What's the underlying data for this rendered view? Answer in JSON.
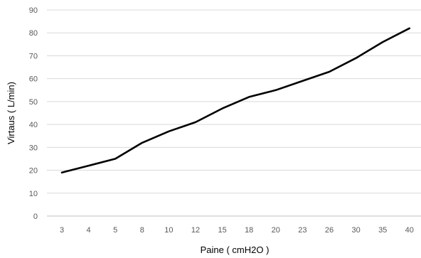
{
  "chart_data": {
    "type": "line",
    "title": "",
    "xlabel": "Paine ( cmH2O )",
    "ylabel": "Virtaus ( L/min)",
    "categories": [
      "3",
      "4",
      "5",
      "8",
      "10",
      "12",
      "15",
      "18",
      "20",
      "23",
      "26",
      "30",
      "35",
      "40"
    ],
    "series": [
      {
        "values": [
          19,
          22,
          25,
          32,
          37,
          41,
          47,
          52,
          55,
          59,
          63,
          69,
          76,
          82
        ],
        "color": "#000000"
      }
    ],
    "ylim": [
      0,
      90
    ],
    "yticks": [
      0,
      10,
      20,
      30,
      40,
      50,
      60,
      70,
      80,
      90
    ],
    "grid": true,
    "legend": "none"
  }
}
